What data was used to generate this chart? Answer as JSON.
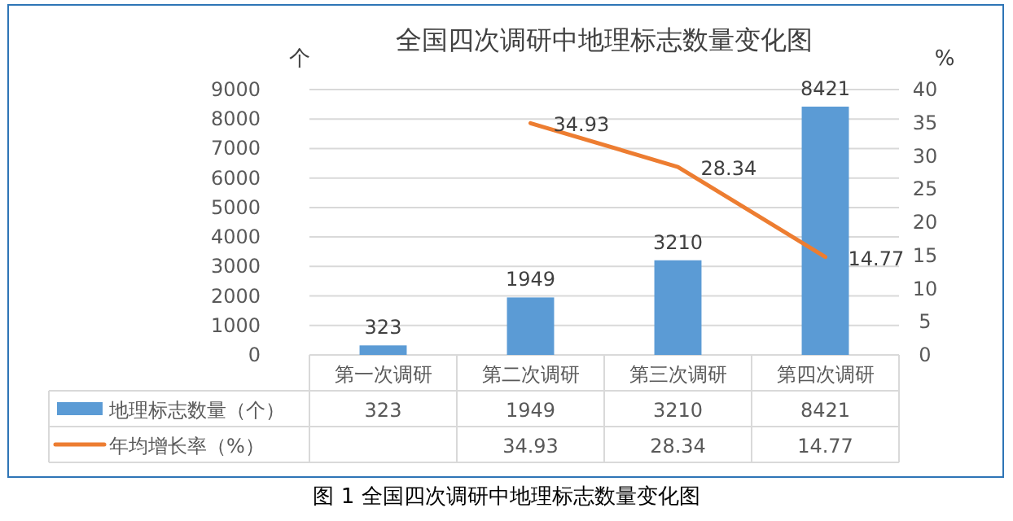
{
  "chart_data": {
    "type": "bar",
    "title": "全国四次调研中地理标志数量变化图",
    "ylabel": "个",
    "y2label": "%",
    "categories": [
      "第一次调研",
      "第二次调研",
      "第三次调研",
      "第四次调研"
    ],
    "series": [
      {
        "name": "地理标志数量（个）",
        "color": "#5b9bd5",
        "values": [
          323,
          1949,
          3210,
          8421
        ],
        "value_labels": [
          "323",
          "1949",
          "3210",
          "8421"
        ]
      },
      {
        "name": "年均增长率（%）",
        "type": "line",
        "axis": "y2",
        "color": "#ed7d31",
        "values": [
          null,
          34.93,
          28.34,
          14.77
        ],
        "value_labels": [
          null,
          "34.93",
          "28.34",
          "14.77"
        ]
      }
    ],
    "ylim": [
      0,
      9000
    ],
    "yticks": [
      0,
      1000,
      2000,
      3000,
      4000,
      5000,
      6000,
      7000,
      8000,
      9000
    ],
    "y2lim": [
      0,
      40
    ],
    "y2ticks": [
      0,
      5,
      10,
      15,
      20,
      25,
      30,
      35,
      40
    ],
    "grid": "y",
    "legend": "bottom",
    "data_labels": true,
    "annotations": [
      "图 1  全国四次调研中地理标志数量变化图"
    ]
  }
}
